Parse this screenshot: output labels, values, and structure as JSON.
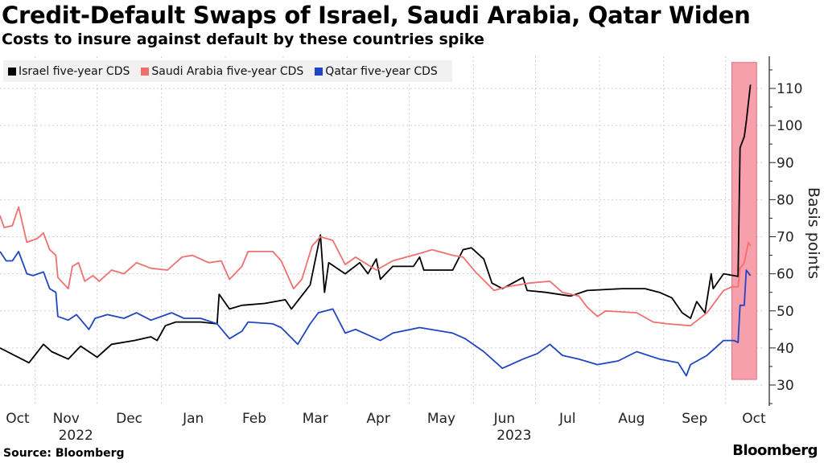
{
  "title": "Credit-Default Swaps of Israel, Saudi Arabia, Qatar Widen",
  "subtitle": "Costs to insure against default by these countries spike",
  "source": "Source: Bloomberg",
  "logo": "Bloomberg",
  "chart_data": {
    "type": "line",
    "title": "Credit-Default Swaps of Israel, Saudi Arabia, Qatar Widen",
    "subtitle": "Costs to insure against default by these countries spike",
    "ylabel": "Basis points",
    "ylim": [
      25,
      118
    ],
    "yaxis_side": "right",
    "yticks": [
      30,
      40,
      50,
      60,
      70,
      80,
      90,
      100,
      110
    ],
    "xlim": [
      "2022-10-15",
      "2023-10-19"
    ],
    "xtick_labels": [
      "Oct",
      "Nov",
      "Dec",
      "Jan",
      "Feb",
      "Mar",
      "Apr",
      "May",
      "Jun",
      "Jul",
      "Aug",
      "Sep",
      "Oct"
    ],
    "year_labels": [
      {
        "label": "2022",
        "month": "2022-11"
      },
      {
        "label": "2023",
        "month": "2023-06"
      }
    ],
    "grid": true,
    "legend_position": "top-left",
    "highlight": {
      "start": "2023-10-04",
      "end": "2023-10-16",
      "ymin": 31.5,
      "ymax": 117,
      "color": "#f7a0ab"
    },
    "series": [
      {
        "name": "Israel five-year CDS",
        "color": "#000000",
        "points": [
          [
            "2022-10-15",
            40
          ],
          [
            "2022-10-29",
            36
          ],
          [
            "2022-11-05",
            41
          ],
          [
            "2022-11-09",
            39
          ],
          [
            "2022-11-17",
            37
          ],
          [
            "2022-11-23",
            40.5
          ],
          [
            "2022-12-01",
            37.5
          ],
          [
            "2022-12-08",
            41
          ],
          [
            "2022-12-19",
            42
          ],
          [
            "2022-12-27",
            43
          ],
          [
            "2022-12-30",
            42
          ],
          [
            "2023-01-03",
            46
          ],
          [
            "2023-01-08",
            47
          ],
          [
            "2023-01-20",
            47
          ],
          [
            "2023-01-28",
            46.5
          ],
          [
            "2023-01-29",
            54.5
          ],
          [
            "2023-02-03",
            50.5
          ],
          [
            "2023-02-09",
            51.5
          ],
          [
            "2023-02-20",
            52
          ],
          [
            "2023-03-02",
            53
          ],
          [
            "2023-03-05",
            50.5
          ],
          [
            "2023-03-14",
            57
          ],
          [
            "2023-03-19",
            70.5
          ],
          [
            "2023-03-21",
            55
          ],
          [
            "2023-03-23",
            63
          ],
          [
            "2023-03-31",
            60
          ],
          [
            "2023-04-07",
            63
          ],
          [
            "2023-04-11",
            60
          ],
          [
            "2023-04-15",
            64
          ],
          [
            "2023-04-17",
            58.5
          ],
          [
            "2023-04-23",
            62
          ],
          [
            "2023-05-03",
            62
          ],
          [
            "2023-05-06",
            64.5
          ],
          [
            "2023-05-08",
            61
          ],
          [
            "2023-05-22",
            61
          ],
          [
            "2023-05-27",
            66.5
          ],
          [
            "2023-05-31",
            67
          ],
          [
            "2023-06-06",
            64
          ],
          [
            "2023-06-10",
            57.5
          ],
          [
            "2023-06-15",
            56
          ],
          [
            "2023-06-25",
            59
          ],
          [
            "2023-06-27",
            55.5
          ],
          [
            "2023-07-06",
            55
          ],
          [
            "2023-07-18",
            54
          ],
          [
            "2023-07-26",
            55.5
          ],
          [
            "2023-08-12",
            56
          ],
          [
            "2023-08-23",
            56
          ],
          [
            "2023-08-30",
            55
          ],
          [
            "2023-09-05",
            53.5
          ],
          [
            "2023-09-10",
            49.5
          ],
          [
            "2023-09-14",
            48
          ],
          [
            "2023-09-17",
            52.5
          ],
          [
            "2023-09-21",
            49.5
          ],
          [
            "2023-09-24",
            60
          ],
          [
            "2023-09-25",
            56
          ],
          [
            "2023-09-30",
            60
          ],
          [
            "2023-10-05",
            59.5
          ],
          [
            "2023-10-07",
            59.3
          ],
          [
            "2023-10-08",
            94
          ],
          [
            "2023-10-10",
            97
          ],
          [
            "2023-10-11",
            101
          ],
          [
            "2023-10-13",
            111
          ]
        ]
      },
      {
        "name": "Saudi Arabia five-year CDS",
        "color": "#f07070",
        "points": [
          [
            "2022-10-15",
            75.7
          ],
          [
            "2022-10-17",
            72.5
          ],
          [
            "2022-10-21",
            73
          ],
          [
            "2022-10-24",
            78
          ],
          [
            "2022-10-28",
            68.5
          ],
          [
            "2022-11-02",
            69.5
          ],
          [
            "2022-11-05",
            71
          ],
          [
            "2022-11-08",
            66.5
          ],
          [
            "2022-11-11",
            65
          ],
          [
            "2022-11-12",
            59
          ],
          [
            "2022-11-17",
            56
          ],
          [
            "2022-11-19",
            62
          ],
          [
            "2022-11-22",
            63
          ],
          [
            "2022-11-25",
            58
          ],
          [
            "2022-11-29",
            59.5
          ],
          [
            "2022-12-02",
            58
          ],
          [
            "2022-12-08",
            61
          ],
          [
            "2022-12-14",
            60
          ],
          [
            "2022-12-20",
            63
          ],
          [
            "2022-12-27",
            61.5
          ],
          [
            "2023-01-04",
            61
          ],
          [
            "2023-01-11",
            64.5
          ],
          [
            "2023-01-16",
            65
          ],
          [
            "2023-01-24",
            63
          ],
          [
            "2023-01-30",
            63.5
          ],
          [
            "2023-02-03",
            58.5
          ],
          [
            "2023-02-09",
            62
          ],
          [
            "2023-02-12",
            66
          ],
          [
            "2023-02-24",
            66
          ],
          [
            "2023-02-28",
            63.5
          ],
          [
            "2023-03-06",
            56
          ],
          [
            "2023-03-10",
            58.5
          ],
          [
            "2023-03-15",
            67.5
          ],
          [
            "2023-03-19",
            70
          ],
          [
            "2023-03-25",
            69
          ],
          [
            "2023-03-31",
            62.5
          ],
          [
            "2023-04-05",
            64.5
          ],
          [
            "2023-04-15",
            61
          ],
          [
            "2023-04-23",
            63.5
          ],
          [
            "2023-05-06",
            65.5
          ],
          [
            "2023-05-12",
            66.5
          ],
          [
            "2023-05-22",
            65
          ],
          [
            "2023-05-27",
            64.5
          ],
          [
            "2023-06-02",
            60.5
          ],
          [
            "2023-06-11",
            55.5
          ],
          [
            "2023-06-17",
            56.5
          ],
          [
            "2023-06-28",
            57.5
          ],
          [
            "2023-07-08",
            58
          ],
          [
            "2023-07-14",
            55
          ],
          [
            "2023-07-22",
            54
          ],
          [
            "2023-07-26",
            51
          ],
          [
            "2023-07-31",
            48.5
          ],
          [
            "2023-08-04",
            50
          ],
          [
            "2023-08-19",
            49.5
          ],
          [
            "2023-08-27",
            47
          ],
          [
            "2023-09-03",
            46.5
          ],
          [
            "2023-09-14",
            46
          ],
          [
            "2023-09-22",
            49.5
          ],
          [
            "2023-09-30",
            55.5
          ],
          [
            "2023-10-04",
            56.5
          ],
          [
            "2023-10-07",
            56.5
          ],
          [
            "2023-10-08",
            61.5
          ],
          [
            "2023-10-10",
            63
          ],
          [
            "2023-10-12",
            68.5
          ],
          [
            "2023-10-13",
            67.5
          ]
        ]
      },
      {
        "name": "Qatar five-year CDS",
        "color": "#1f45c4",
        "points": [
          [
            "2022-10-15",
            66
          ],
          [
            "2022-10-18",
            63.5
          ],
          [
            "2022-10-21",
            63.5
          ],
          [
            "2022-10-24",
            66
          ],
          [
            "2022-10-28",
            60
          ],
          [
            "2022-10-31",
            59.5
          ],
          [
            "2022-11-05",
            60.5
          ],
          [
            "2022-11-08",
            56
          ],
          [
            "2022-11-11",
            55
          ],
          [
            "2022-11-12",
            48.5
          ],
          [
            "2022-11-17",
            47.5
          ],
          [
            "2022-11-21",
            49
          ],
          [
            "2022-11-27",
            45
          ],
          [
            "2022-11-30",
            48
          ],
          [
            "2022-12-06",
            49
          ],
          [
            "2022-12-14",
            48
          ],
          [
            "2022-12-20",
            49.5
          ],
          [
            "2022-12-27",
            47.5
          ],
          [
            "2023-01-06",
            49.5
          ],
          [
            "2023-01-12",
            48
          ],
          [
            "2023-01-20",
            48
          ],
          [
            "2023-01-28",
            46.5
          ],
          [
            "2023-02-03",
            42.5
          ],
          [
            "2023-02-09",
            44.5
          ],
          [
            "2023-02-12",
            47
          ],
          [
            "2023-02-24",
            46.5
          ],
          [
            "2023-02-28",
            45.5
          ],
          [
            "2023-03-08",
            41
          ],
          [
            "2023-03-14",
            46.5
          ],
          [
            "2023-03-18",
            49.5
          ],
          [
            "2023-03-25",
            50.5
          ],
          [
            "2023-03-31",
            44
          ],
          [
            "2023-04-05",
            45
          ],
          [
            "2023-04-17",
            42
          ],
          [
            "2023-04-23",
            44
          ],
          [
            "2023-05-06",
            45.5
          ],
          [
            "2023-05-22",
            44
          ],
          [
            "2023-05-28",
            42.5
          ],
          [
            "2023-06-06",
            39
          ],
          [
            "2023-06-15",
            34.5
          ],
          [
            "2023-06-25",
            37
          ],
          [
            "2023-07-02",
            38.5
          ],
          [
            "2023-07-08",
            41
          ],
          [
            "2023-07-14",
            38
          ],
          [
            "2023-07-22",
            37
          ],
          [
            "2023-07-31",
            35.5
          ],
          [
            "2023-08-10",
            36.5
          ],
          [
            "2023-08-19",
            39
          ],
          [
            "2023-08-30",
            37
          ],
          [
            "2023-09-08",
            36
          ],
          [
            "2023-09-12",
            32.5
          ],
          [
            "2023-09-14",
            35.5
          ],
          [
            "2023-09-22",
            38
          ],
          [
            "2023-09-30",
            42
          ],
          [
            "2023-10-05",
            42
          ],
          [
            "2023-10-07",
            41.5
          ],
          [
            "2023-10-08",
            51.5
          ],
          [
            "2023-10-10",
            51.5
          ],
          [
            "2023-10-11",
            61
          ],
          [
            "2023-10-13",
            59.5
          ]
        ]
      }
    ]
  }
}
